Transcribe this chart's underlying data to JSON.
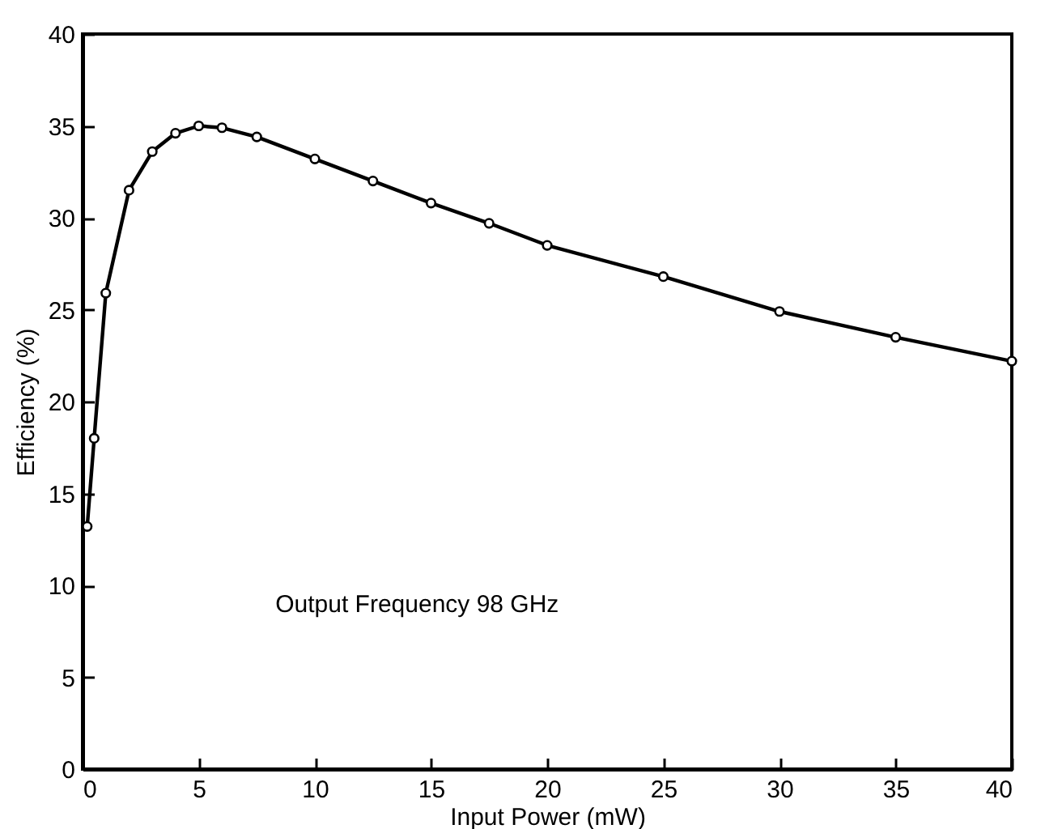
{
  "chart_data": {
    "type": "line",
    "xlabel": "Input Power (mW)",
    "ylabel": "Efficiency (%)",
    "x": [
      0.2,
      0.5,
      1,
      2,
      3,
      4,
      5,
      6,
      7.5,
      10,
      12.5,
      15,
      17.5,
      20,
      25,
      30,
      35,
      40
    ],
    "series": [
      {
        "color": "#000000",
        "values": [
          13.2,
          18.0,
          25.9,
          31.5,
          33.6,
          34.6,
          35.0,
          34.9,
          34.4,
          33.2,
          32.0,
          30.8,
          29.7,
          28.5,
          26.8,
          24.9,
          23.5,
          22.2
        ]
      }
    ],
    "xlim": [
      0,
      40
    ],
    "xticks": [
      0,
      5,
      10,
      15,
      20,
      25,
      30,
      35,
      40
    ],
    "ylim": [
      0,
      40
    ],
    "yticks": [
      0,
      5,
      10,
      15,
      20,
      25,
      30,
      35,
      40
    ],
    "marker": "circle",
    "line_style": "solid",
    "grid": false,
    "legend": false,
    "annotations": [
      "Output Frequency 98 GHz"
    ]
  }
}
